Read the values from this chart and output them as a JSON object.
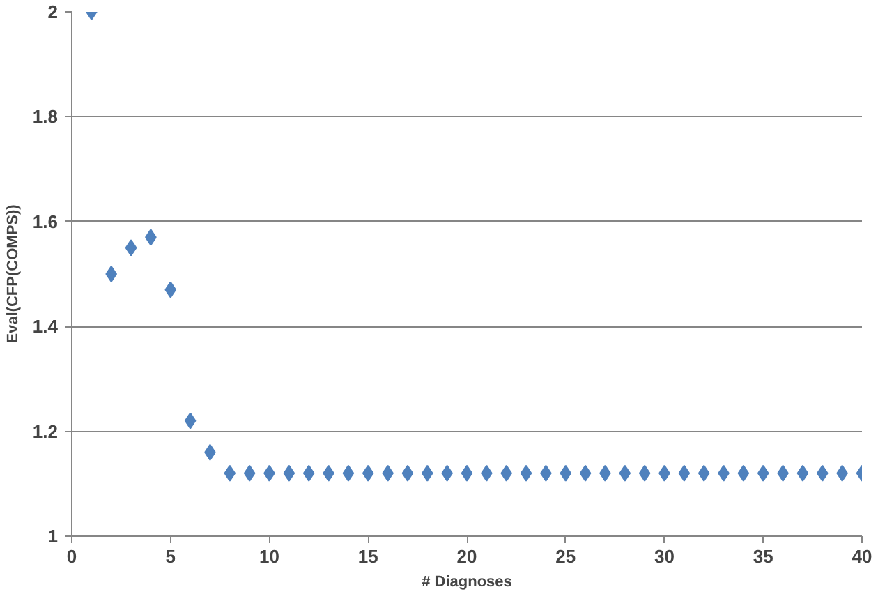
{
  "chart_data": {
    "type": "scatter",
    "xlabel": "# Diagnoses",
    "ylabel": "Eval(CFP(COMPS))",
    "x": [
      1,
      2,
      3,
      4,
      5,
      6,
      7,
      8,
      9,
      10,
      11,
      12,
      13,
      14,
      15,
      16,
      17,
      18,
      19,
      20,
      21,
      22,
      23,
      24,
      25,
      26,
      27,
      28,
      29,
      30,
      31,
      32,
      33,
      34,
      35,
      36,
      37,
      38,
      39,
      40
    ],
    "series": [
      {
        "color": "#4f81bd",
        "values": [
          2.0,
          1.5,
          1.55,
          1.57,
          1.47,
          1.22,
          1.16,
          1.12,
          1.12,
          1.12,
          1.12,
          1.12,
          1.12,
          1.12,
          1.12,
          1.12,
          1.12,
          1.12,
          1.12,
          1.12,
          1.12,
          1.12,
          1.12,
          1.12,
          1.12,
          1.12,
          1.12,
          1.12,
          1.12,
          1.12,
          1.12,
          1.12,
          1.12,
          1.12,
          1.12,
          1.12,
          1.12,
          1.12,
          1.12,
          1.12
        ]
      }
    ],
    "xlim": [
      0,
      40
    ],
    "xticks": [
      0,
      5,
      10,
      15,
      20,
      25,
      30,
      35,
      40
    ],
    "ylim": [
      1,
      2
    ],
    "yticks": [
      1,
      1.2,
      1.4,
      1.6,
      1.8,
      2
    ],
    "grid": "y",
    "marker": "diamond"
  }
}
